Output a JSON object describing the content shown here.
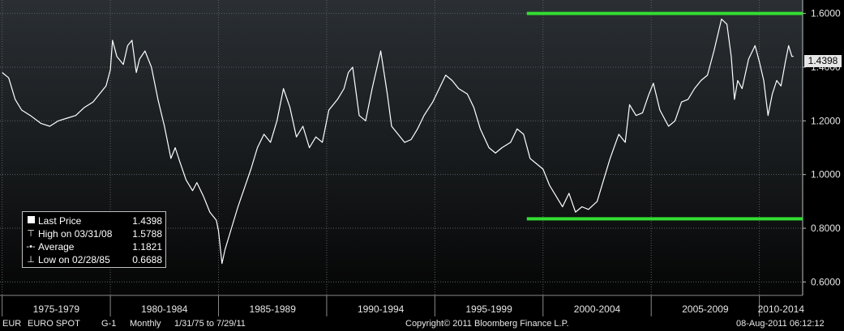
{
  "chart_data": {
    "type": "line",
    "series": [
      {
        "color": "#ffffff",
        "points": [
          [
            1975.0,
            1.38
          ],
          [
            1975.3,
            1.36
          ],
          [
            1975.6,
            1.28
          ],
          [
            1975.9,
            1.24
          ],
          [
            1976.3,
            1.22
          ],
          [
            1976.8,
            1.19
          ],
          [
            1977.2,
            1.18
          ],
          [
            1977.6,
            1.2
          ],
          [
            1978.0,
            1.21
          ],
          [
            1978.4,
            1.22
          ],
          [
            1978.8,
            1.25
          ],
          [
            1979.2,
            1.27
          ],
          [
            1979.5,
            1.3
          ],
          [
            1979.8,
            1.33
          ],
          [
            1980.0,
            1.39
          ],
          [
            1980.1,
            1.5
          ],
          [
            1980.3,
            1.44
          ],
          [
            1980.6,
            1.41
          ],
          [
            1980.8,
            1.48
          ],
          [
            1981.0,
            1.5
          ],
          [
            1981.2,
            1.38
          ],
          [
            1981.35,
            1.43
          ],
          [
            1981.6,
            1.46
          ],
          [
            1981.9,
            1.4
          ],
          [
            1982.2,
            1.28
          ],
          [
            1982.5,
            1.18
          ],
          [
            1982.8,
            1.06
          ],
          [
            1983.0,
            1.1
          ],
          [
            1983.2,
            1.05
          ],
          [
            1983.5,
            0.98
          ],
          [
            1983.8,
            0.94
          ],
          [
            1984.0,
            0.97
          ],
          [
            1984.3,
            0.92
          ],
          [
            1984.6,
            0.86
          ],
          [
            1984.9,
            0.83
          ],
          [
            1985.0,
            0.79
          ],
          [
            1985.16,
            0.6688
          ],
          [
            1985.3,
            0.72
          ],
          [
            1985.6,
            0.8
          ],
          [
            1985.9,
            0.88
          ],
          [
            1986.2,
            0.95
          ],
          [
            1986.5,
            1.02
          ],
          [
            1986.8,
            1.1
          ],
          [
            1987.1,
            1.15
          ],
          [
            1987.4,
            1.12
          ],
          [
            1987.7,
            1.2
          ],
          [
            1988.0,
            1.32
          ],
          [
            1988.3,
            1.25
          ],
          [
            1988.6,
            1.14
          ],
          [
            1988.9,
            1.18
          ],
          [
            1989.2,
            1.1
          ],
          [
            1989.5,
            1.14
          ],
          [
            1989.8,
            1.12
          ],
          [
            1990.1,
            1.24
          ],
          [
            1990.5,
            1.28
          ],
          [
            1990.8,
            1.32
          ],
          [
            1991.0,
            1.38
          ],
          [
            1991.2,
            1.4
          ],
          [
            1991.5,
            1.22
          ],
          [
            1991.8,
            1.2
          ],
          [
            1992.1,
            1.32
          ],
          [
            1992.5,
            1.46
          ],
          [
            1992.8,
            1.3
          ],
          [
            1993.0,
            1.18
          ],
          [
            1993.3,
            1.15
          ],
          [
            1993.6,
            1.12
          ],
          [
            1993.9,
            1.13
          ],
          [
            1994.2,
            1.17
          ],
          [
            1994.5,
            1.22
          ],
          [
            1994.9,
            1.27
          ],
          [
            1995.2,
            1.32
          ],
          [
            1995.5,
            1.37
          ],
          [
            1995.8,
            1.35
          ],
          [
            1996.1,
            1.32
          ],
          [
            1996.5,
            1.3
          ],
          [
            1996.8,
            1.25
          ],
          [
            1997.1,
            1.17
          ],
          [
            1997.5,
            1.1
          ],
          [
            1997.8,
            1.08
          ],
          [
            1998.1,
            1.1
          ],
          [
            1998.5,
            1.12
          ],
          [
            1998.8,
            1.17
          ],
          [
            1999.1,
            1.15
          ],
          [
            1999.4,
            1.06
          ],
          [
            1999.7,
            1.04
          ],
          [
            2000.0,
            1.02
          ],
          [
            2000.3,
            0.96
          ],
          [
            2000.6,
            0.92
          ],
          [
            2000.9,
            0.88
          ],
          [
            2001.2,
            0.93
          ],
          [
            2001.5,
            0.86
          ],
          [
            2001.8,
            0.88
          ],
          [
            2002.1,
            0.87
          ],
          [
            2002.5,
            0.9
          ],
          [
            2002.8,
            0.98
          ],
          [
            2003.1,
            1.06
          ],
          [
            2003.5,
            1.15
          ],
          [
            2003.8,
            1.12
          ],
          [
            2004.0,
            1.26
          ],
          [
            2004.3,
            1.22
          ],
          [
            2004.6,
            1.23
          ],
          [
            2004.9,
            1.3
          ],
          [
            2005.1,
            1.34
          ],
          [
            2005.4,
            1.24
          ],
          [
            2005.8,
            1.18
          ],
          [
            2006.1,
            1.2
          ],
          [
            2006.4,
            1.27
          ],
          [
            2006.7,
            1.28
          ],
          [
            2007.0,
            1.32
          ],
          [
            2007.3,
            1.35
          ],
          [
            2007.6,
            1.37
          ],
          [
            2007.9,
            1.46
          ],
          [
            2008.25,
            1.5788
          ],
          [
            2008.5,
            1.56
          ],
          [
            2008.7,
            1.44
          ],
          [
            2008.85,
            1.28
          ],
          [
            2009.0,
            1.35
          ],
          [
            2009.2,
            1.32
          ],
          [
            2009.5,
            1.43
          ],
          [
            2009.8,
            1.48
          ],
          [
            2010.0,
            1.42
          ],
          [
            2010.2,
            1.35
          ],
          [
            2010.4,
            1.22
          ],
          [
            2010.6,
            1.3
          ],
          [
            2010.8,
            1.35
          ],
          [
            2011.0,
            1.33
          ],
          [
            2011.2,
            1.42
          ],
          [
            2011.35,
            1.48
          ],
          [
            2011.5,
            1.44
          ],
          [
            2011.58,
            1.4398
          ]
        ]
      }
    ],
    "yaxis": {
      "min": 0.55,
      "max": 1.65,
      "ticks": [
        "0.6000",
        "0.8000",
        "1.0000",
        "1.2000",
        "1.4000",
        "1.6000"
      ]
    },
    "xaxis": {
      "min": 1974.9,
      "max": 2012.0,
      "boundaries": [
        1975,
        1980,
        1985,
        1990,
        1995,
        2000,
        2005,
        2010
      ],
      "labels": [
        "1975-1979",
        "1980-1984",
        "1985-1989",
        "1990-1994",
        "1995-1999",
        "2000-2004",
        "2005-2009",
        "2010-2014"
      ]
    },
    "reference_lines": [
      {
        "value": 1.6,
        "x_from": 2000.0,
        "x_to": 2012.0,
        "color": "#33dd33"
      },
      {
        "value": 0.835,
        "x_from": 2000.0,
        "x_to": 2012.0,
        "color": "#33dd33"
      }
    ],
    "grid": true,
    "last_price_label": "1.4398"
  },
  "legend": {
    "rows": [
      {
        "marker": "square",
        "label": "Last Price",
        "value": "1.4398"
      },
      {
        "marker": "high",
        "label": "High on 03/31/08",
        "value": "1.5788"
      },
      {
        "marker": "average",
        "label": "Average",
        "value": "1.1821"
      },
      {
        "marker": "low",
        "label": "Low on 02/28/85",
        "value": "0.6688"
      }
    ]
  },
  "footer": {
    "ticker": "EUR",
    "name": "EURO SPOT",
    "code": "G-1",
    "period": "Monthly",
    "range": "1/31/75 to 7/29/11",
    "copyright": "Copyright© 2011 Bloomberg Finance L.P.",
    "timestamp": "08-Aug-2011 06:12:12"
  }
}
